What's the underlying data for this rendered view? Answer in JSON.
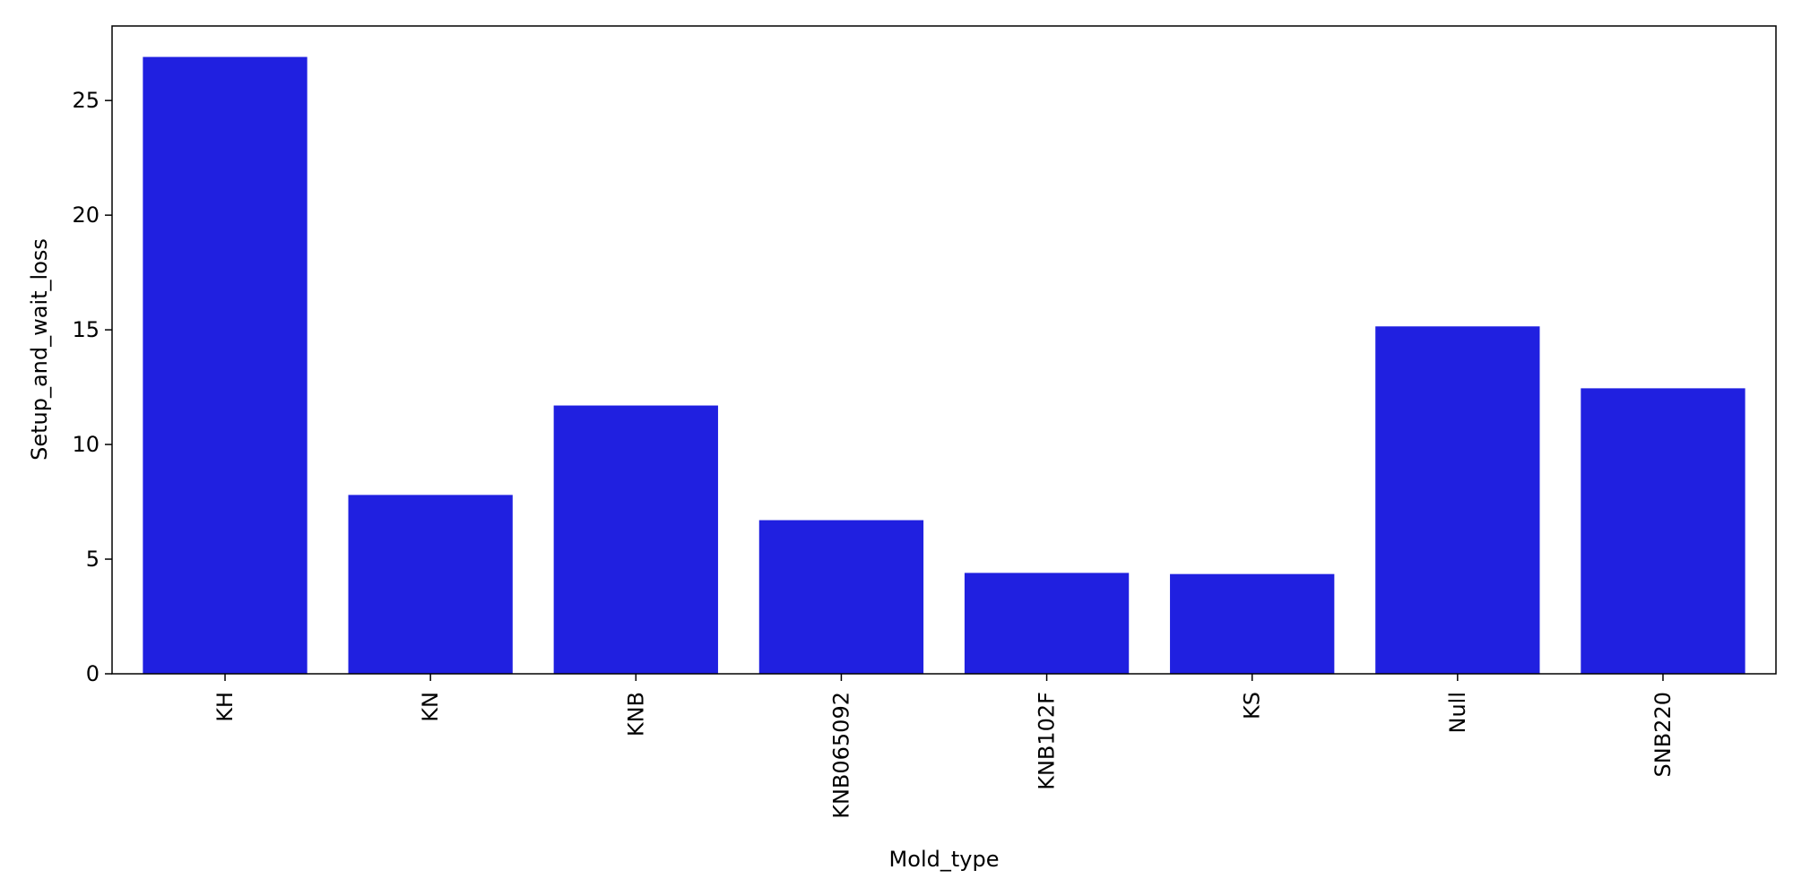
{
  "chart_data": {
    "type": "bar",
    "title": "",
    "xlabel": "Mold_type",
    "ylabel": "Setup_and_wait_loss",
    "categories": [
      "KH",
      "KN",
      "KNB",
      "KNB065092",
      "KNB102F",
      "KS",
      "Null",
      "SNB220"
    ],
    "values": [
      26.9,
      7.8,
      11.7,
      6.7,
      4.4,
      4.35,
      15.15,
      12.45
    ],
    "ylim": [
      0,
      28.25
    ],
    "yticks": [
      0,
      5,
      10,
      15,
      20,
      25
    ],
    "grid": false,
    "legend": "none",
    "x_tick_rotation": "vertical",
    "bar_color": "#2020e0"
  }
}
